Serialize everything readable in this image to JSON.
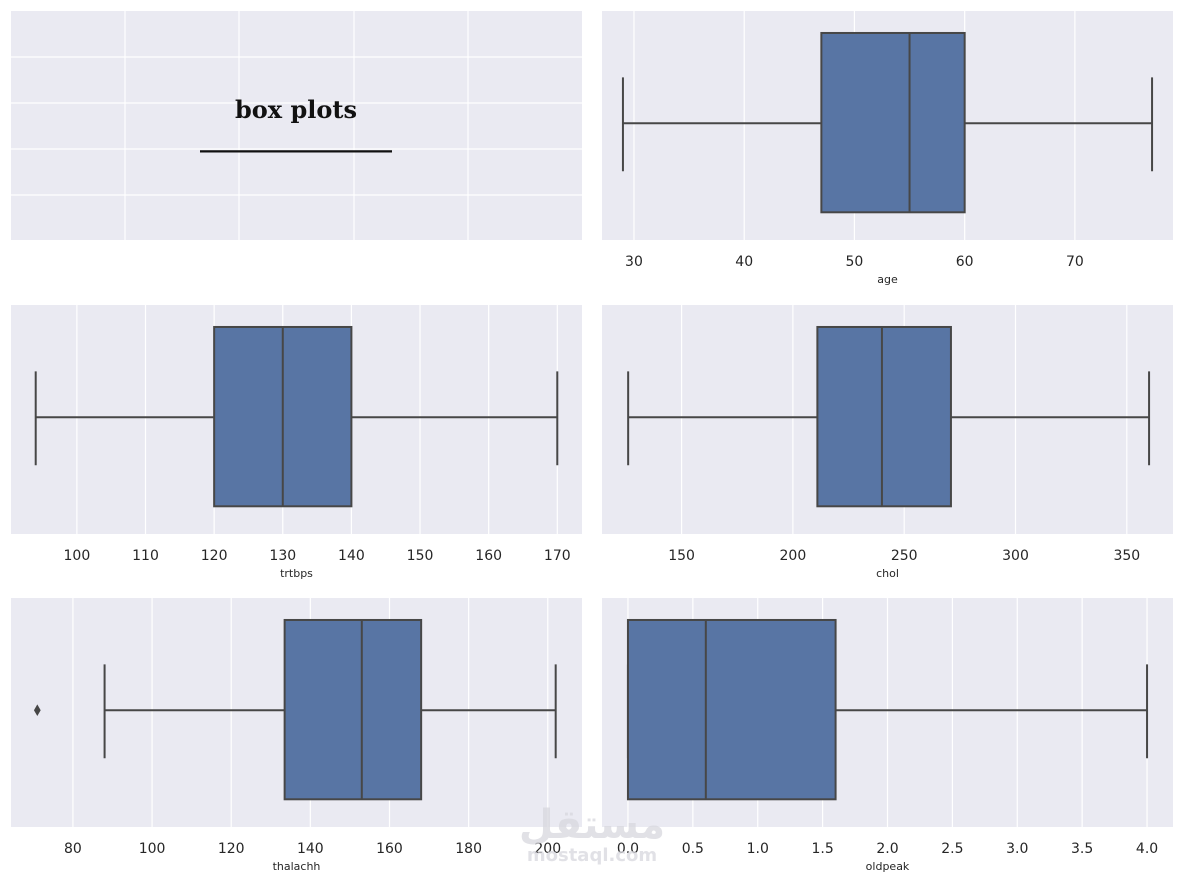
{
  "title_panel": {
    "title": "box plots",
    "underline": "________________"
  },
  "watermark": {
    "arabic": "مستقل",
    "latin": "mostaql.com"
  },
  "chart_data": [
    {
      "type": "box",
      "xlabel": "age",
      "xlim": [
        27.1,
        78.9
      ],
      "ticks": [
        30,
        40,
        50,
        60,
        70
      ],
      "tick_labels": [
        "30",
        "40",
        "50",
        "60",
        "70"
      ],
      "whisker_low": 29,
      "q1": 47,
      "median": 55,
      "q3": 60,
      "whisker_high": 77,
      "outliers": []
    },
    {
      "type": "box",
      "xlabel": "trtbps",
      "xlim": [
        90.4,
        173.6
      ],
      "ticks": [
        100,
        110,
        120,
        130,
        140,
        150,
        160,
        170
      ],
      "tick_labels": [
        "100",
        "110",
        "120",
        "130",
        "140",
        "150",
        "160",
        "170"
      ],
      "whisker_low": 94,
      "q1": 120,
      "median": 130,
      "q3": 140,
      "whisker_high": 170,
      "outliers": []
    },
    {
      "type": "box",
      "xlabel": "chol",
      "xlim": [
        114.25,
        370.75
      ],
      "ticks": [
        150,
        200,
        250,
        300,
        350
      ],
      "tick_labels": [
        "150",
        "200",
        "250",
        "300",
        "350"
      ],
      "whisker_low": 126,
      "q1": 211,
      "median": 240,
      "q3": 271,
      "whisker_high": 360,
      "outliers": []
    },
    {
      "type": "box",
      "xlabel": "thalachh",
      "xlim": [
        64.35,
        208.65
      ],
      "ticks": [
        80,
        100,
        120,
        140,
        160,
        180,
        200
      ],
      "tick_labels": [
        "80",
        "100",
        "120",
        "140",
        "160",
        "180",
        "200"
      ],
      "whisker_low": 88,
      "q1": 133.5,
      "median": 153,
      "q3": 168,
      "whisker_high": 202,
      "outliers": [
        71
      ]
    },
    {
      "type": "box",
      "xlabel": "oldpeak",
      "xlim": [
        -0.2,
        4.2
      ],
      "ticks": [
        0.0,
        0.5,
        1.0,
        1.5,
        2.0,
        2.5,
        3.0,
        3.5,
        4.0
      ],
      "tick_labels": [
        "0.0",
        "0.5",
        "1.0",
        "1.5",
        "2.0",
        "2.5",
        "3.0",
        "3.5",
        "4.0"
      ],
      "whisker_low": 0.0,
      "q1": 0.0,
      "median": 0.6,
      "q3": 1.6,
      "whisker_high": 4.0,
      "outliers": []
    }
  ],
  "colors": {
    "panel_bg": "#eaeaf2",
    "grid": "#ffffff",
    "box_fill": "#5875a4",
    "line": "#474747"
  }
}
